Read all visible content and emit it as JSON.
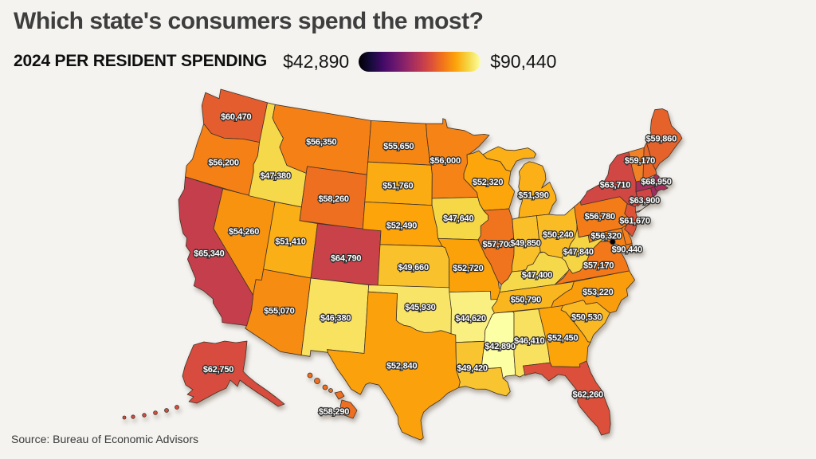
{
  "title": "Which state's consumers spend the most?",
  "subtitle": "2024 PER RESIDENT SPENDING",
  "legend": {
    "min_label": "$42,890",
    "max_label": "$90,440",
    "gradient_stops": [
      "#FCFFA4",
      "#F6D746",
      "#FCA50A",
      "#F37819",
      "#DD5139",
      "#BC3754",
      "#932667",
      "#6A176E",
      "#420A68",
      "#160B39",
      "#000004"
    ]
  },
  "source": "Source: Bureau of Economic Advisors",
  "chart_data": {
    "type": "choropleth_map",
    "title": "2024 per resident spending by US state",
    "unit": "USD per resident",
    "domain": [
      42890,
      90440
    ],
    "colormap": "inferno_reversed",
    "legend_position": "top",
    "states": [
      {
        "id": "WA",
        "name": "Washington",
        "value": 60470,
        "label": "$60,470"
      },
      {
        "id": "OR",
        "name": "Oregon",
        "value": 56200,
        "label": "$56,200"
      },
      {
        "id": "CA",
        "name": "California",
        "value": 65340,
        "label": "$65,340"
      },
      {
        "id": "NV",
        "name": "Nevada",
        "value": 54260,
        "label": "$54,260"
      },
      {
        "id": "ID",
        "name": "Idaho",
        "value": 47380,
        "label": "$47,380"
      },
      {
        "id": "MT",
        "name": "Montana",
        "value": 56350,
        "label": "$56,350"
      },
      {
        "id": "WY",
        "name": "Wyoming",
        "value": 58260,
        "label": "$58,260"
      },
      {
        "id": "UT",
        "name": "Utah",
        "value": 51410,
        "label": "$51,410"
      },
      {
        "id": "CO",
        "name": "Colorado",
        "value": 64790,
        "label": "$64,790"
      },
      {
        "id": "AZ",
        "name": "Arizona",
        "value": 55070,
        "label": "$55,070"
      },
      {
        "id": "NM",
        "name": "New Mexico",
        "value": 46380,
        "label": "$46,380"
      },
      {
        "id": "ND",
        "name": "North Dakota",
        "value": 55650,
        "label": "$55,650"
      },
      {
        "id": "SD",
        "name": "South Dakota",
        "value": 51760,
        "label": "$51,760"
      },
      {
        "id": "NE",
        "name": "Nebraska",
        "value": 52490,
        "label": "$52,490"
      },
      {
        "id": "KS",
        "name": "Kansas",
        "value": 49660,
        "label": "$49,660"
      },
      {
        "id": "OK",
        "name": "Oklahoma",
        "value": 45930,
        "label": "$45,930"
      },
      {
        "id": "TX",
        "name": "Texas",
        "value": 52840,
        "label": "$52,840"
      },
      {
        "id": "MN",
        "name": "Minnesota",
        "value": 56000,
        "label": "$56,000"
      },
      {
        "id": "IA",
        "name": "Iowa",
        "value": 47640,
        "label": "$47,640"
      },
      {
        "id": "MO",
        "name": "Missouri",
        "value": 52720,
        "label": "$52,720"
      },
      {
        "id": "AR",
        "name": "Arkansas",
        "value": 44620,
        "label": "$44,620"
      },
      {
        "id": "LA",
        "name": "Louisiana",
        "value": 49420,
        "label": "$49,420"
      },
      {
        "id": "WI",
        "name": "Wisconsin",
        "value": 52320,
        "label": "$52,320"
      },
      {
        "id": "IL",
        "name": "Illinois",
        "value": 57700,
        "label": "$57,700"
      },
      {
        "id": "MI",
        "name": "Michigan",
        "value": 51390,
        "label": "$51,390"
      },
      {
        "id": "IN",
        "name": "Indiana",
        "value": 49850,
        "label": "$49,850"
      },
      {
        "id": "OH",
        "name": "Ohio",
        "value": 50240,
        "label": "$50,240"
      },
      {
        "id": "KY",
        "name": "Kentucky",
        "value": 47400,
        "label": "$47,400"
      },
      {
        "id": "TN",
        "name": "Tennessee",
        "value": 50790,
        "label": "$50,790"
      },
      {
        "id": "MS",
        "name": "Mississippi",
        "value": 42890,
        "label": "$42,890"
      },
      {
        "id": "AL",
        "name": "Alabama",
        "value": 46410,
        "label": "$46,410"
      },
      {
        "id": "GA",
        "name": "Georgia",
        "value": 52450,
        "label": "$52,450"
      },
      {
        "id": "FL",
        "name": "Florida",
        "value": 62260,
        "label": "$62,260"
      },
      {
        "id": "SC",
        "name": "South Carolina",
        "value": 50530,
        "label": "$50,530"
      },
      {
        "id": "NC",
        "name": "North Carolina",
        "value": 53220,
        "label": "$53,220"
      },
      {
        "id": "VA",
        "name": "Virginia",
        "value": 57170,
        "label": "$57,170"
      },
      {
        "id": "WV",
        "name": "West Virginia",
        "value": 47840,
        "label": "$47,840"
      },
      {
        "id": "MD",
        "name": "Maryland",
        "value": 56320,
        "label": "$56,320"
      },
      {
        "id": "DC",
        "name": "District of Columbia",
        "value": 90440,
        "label": "$90,440"
      },
      {
        "id": "PA",
        "name": "Pennsylvania",
        "value": 56780,
        "label": "$56,780"
      },
      {
        "id": "NJ",
        "name": "New Jersey",
        "value": 61670,
        "label": "$61,670"
      },
      {
        "id": "NY",
        "name": "New York",
        "value": 63710,
        "label": "$63,710"
      },
      {
        "id": "CT",
        "name": "Connecticut",
        "value": 63900,
        "label": "$63,900"
      },
      {
        "id": "MA",
        "name": "Massachusetts",
        "value": 68950,
        "label": "$68,950"
      },
      {
        "id": "NH",
        "name": "New Hampshire",
        "value": 59170,
        "label": "$59,170"
      },
      {
        "id": "ME",
        "name": "Maine",
        "value": 59860,
        "label": "$59,860"
      },
      {
        "id": "AK",
        "name": "Alaska",
        "value": 62750,
        "label": "$62,750"
      },
      {
        "id": "HI",
        "name": "Hawaii",
        "value": 58290,
        "label": "$58,290"
      },
      {
        "id": "VT",
        "name": "Vermont",
        "value": null,
        "label": null,
        "observed_fill": "#F08125"
      },
      {
        "id": "RI",
        "name": "Rhode Island",
        "value": null,
        "label": null,
        "observed_fill": "#A02E62"
      },
      {
        "id": "DE",
        "name": "Delaware",
        "value": null,
        "label": null,
        "observed_fill": "#F5801E"
      }
    ]
  }
}
